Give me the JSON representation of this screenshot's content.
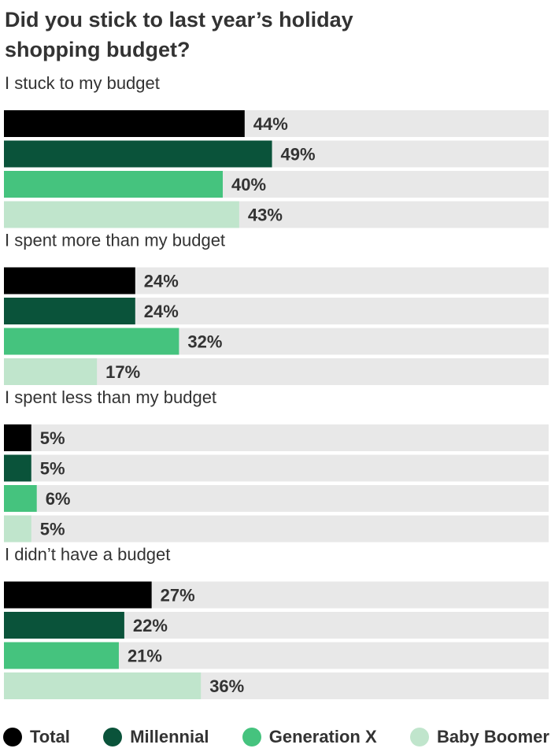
{
  "chart_data": {
    "type": "bar",
    "orientation": "horizontal",
    "title": "Did you stick to last year’s holiday shopping budget?",
    "xlim": [
      0,
      100
    ],
    "value_suffix": "%",
    "categories": [
      "I stuck to my budget",
      "I spent more than my budget",
      "I spent less than my budget",
      "I didn’t have a budget"
    ],
    "series": [
      {
        "name": "Total",
        "color": "#000000",
        "values": [
          44,
          24,
          5,
          27
        ]
      },
      {
        "name": "Millennial",
        "color": "#0a533a",
        "values": [
          49,
          24,
          5,
          22
        ]
      },
      {
        "name": "Generation X",
        "color": "#45c37e",
        "values": [
          40,
          32,
          6,
          21
        ]
      },
      {
        "name": "Baby Boomer",
        "color": "#c0e5cc",
        "values": [
          43,
          17,
          5,
          36
        ]
      }
    ],
    "track_color": "#e8e8e8",
    "legend": "bottom"
  }
}
